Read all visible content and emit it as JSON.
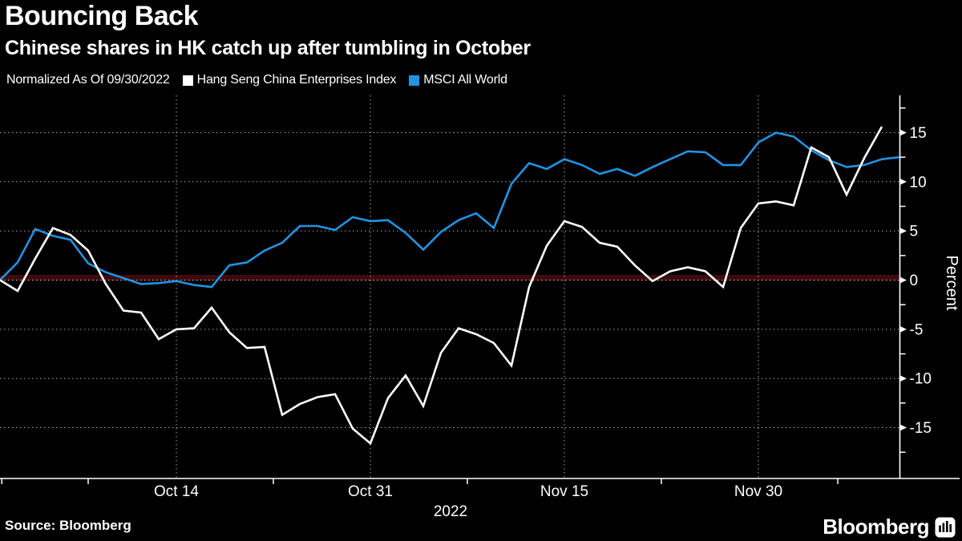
{
  "header": {
    "title": "Bouncing Back",
    "subtitle": "Chinese shares in HK catch up after tumbling in October"
  },
  "legend": {
    "note": "Normalized As Of 09/30/2022"
  },
  "footer": {
    "source": "Source: Bloomberg",
    "brand": "Bloomberg"
  },
  "chart_data": {
    "type": "line",
    "title": "Bouncing Back",
    "normalized_note": "Normalized As Of 09/30/2022",
    "ylabel": "Percent",
    "x_unit": "consecutive business days, index 0 = 09/30/2022",
    "x_range_days": [
      0,
      51
    ],
    "y_range": [
      -20.2,
      18.8
    ],
    "y_ticks": [
      15,
      10,
      5,
      0,
      -5,
      -10,
      -15
    ],
    "y_minor_tick_step": 2.5,
    "x_tick_labels": [
      {
        "label": "Oct 14",
        "day": 10
      },
      {
        "label": "Oct 31",
        "day": 21
      },
      {
        "label": "Nov 15",
        "day": 32
      },
      {
        "label": "Nov 30",
        "day": 43
      }
    ],
    "x_boundary_tick_days": [
      0.1,
      5,
      15.5,
      26.5,
      37.5,
      47.5
    ],
    "x_year_label": "2022",
    "grid_color": "#a8a8a8",
    "zero_line": {
      "value": 0,
      "band_color": "#3f0a0d",
      "dot_color": "#d7bdbd"
    },
    "axis_color": "#ffffff",
    "legend_position": "top",
    "series": [
      {
        "name": "Hang Seng China Enterprises Index",
        "color": "#ffffff",
        "values": [
          0,
          -1.1,
          2.2,
          5.3,
          4.6,
          3.0,
          -0.4,
          -3.1,
          -3.3,
          -6.0,
          -5.0,
          -4.9,
          -2.8,
          -5.3,
          -6.9,
          -6.8,
          -13.7,
          -12.6,
          -11.9,
          -11.6,
          -15.1,
          -16.6,
          -12.0,
          -9.7,
          -12.8,
          -7.4,
          -4.9,
          -5.5,
          -6.4,
          -8.7,
          -0.7,
          3.5,
          6.0,
          5.4,
          3.8,
          3.4,
          1.5,
          -0.1,
          0.9,
          1.3,
          0.9,
          -0.7,
          5.3,
          7.8,
          8.0,
          7.6,
          13.5,
          12.5,
          8.7,
          12.4,
          15.6
        ]
      },
      {
        "name": "MSCI All World",
        "color": "#2094e4",
        "values": [
          0,
          1.8,
          5.2,
          4.5,
          4.1,
          1.7,
          0.8,
          0.2,
          -0.4,
          -0.3,
          -0.1,
          -0.5,
          -0.7,
          1.5,
          1.8,
          3.0,
          3.8,
          5.5,
          5.5,
          5.1,
          6.4,
          6.0,
          6.1,
          4.8,
          3.1,
          4.9,
          6.1,
          6.8,
          5.3,
          9.8,
          11.9,
          11.3,
          12.3,
          11.7,
          10.8,
          11.3,
          10.6,
          11.5,
          12.3,
          13.1,
          13.0,
          11.7,
          11.7,
          14.0,
          15.0,
          14.6,
          13.2,
          12.2,
          11.5,
          11.7,
          12.3,
          12.5
        ]
      }
    ]
  }
}
